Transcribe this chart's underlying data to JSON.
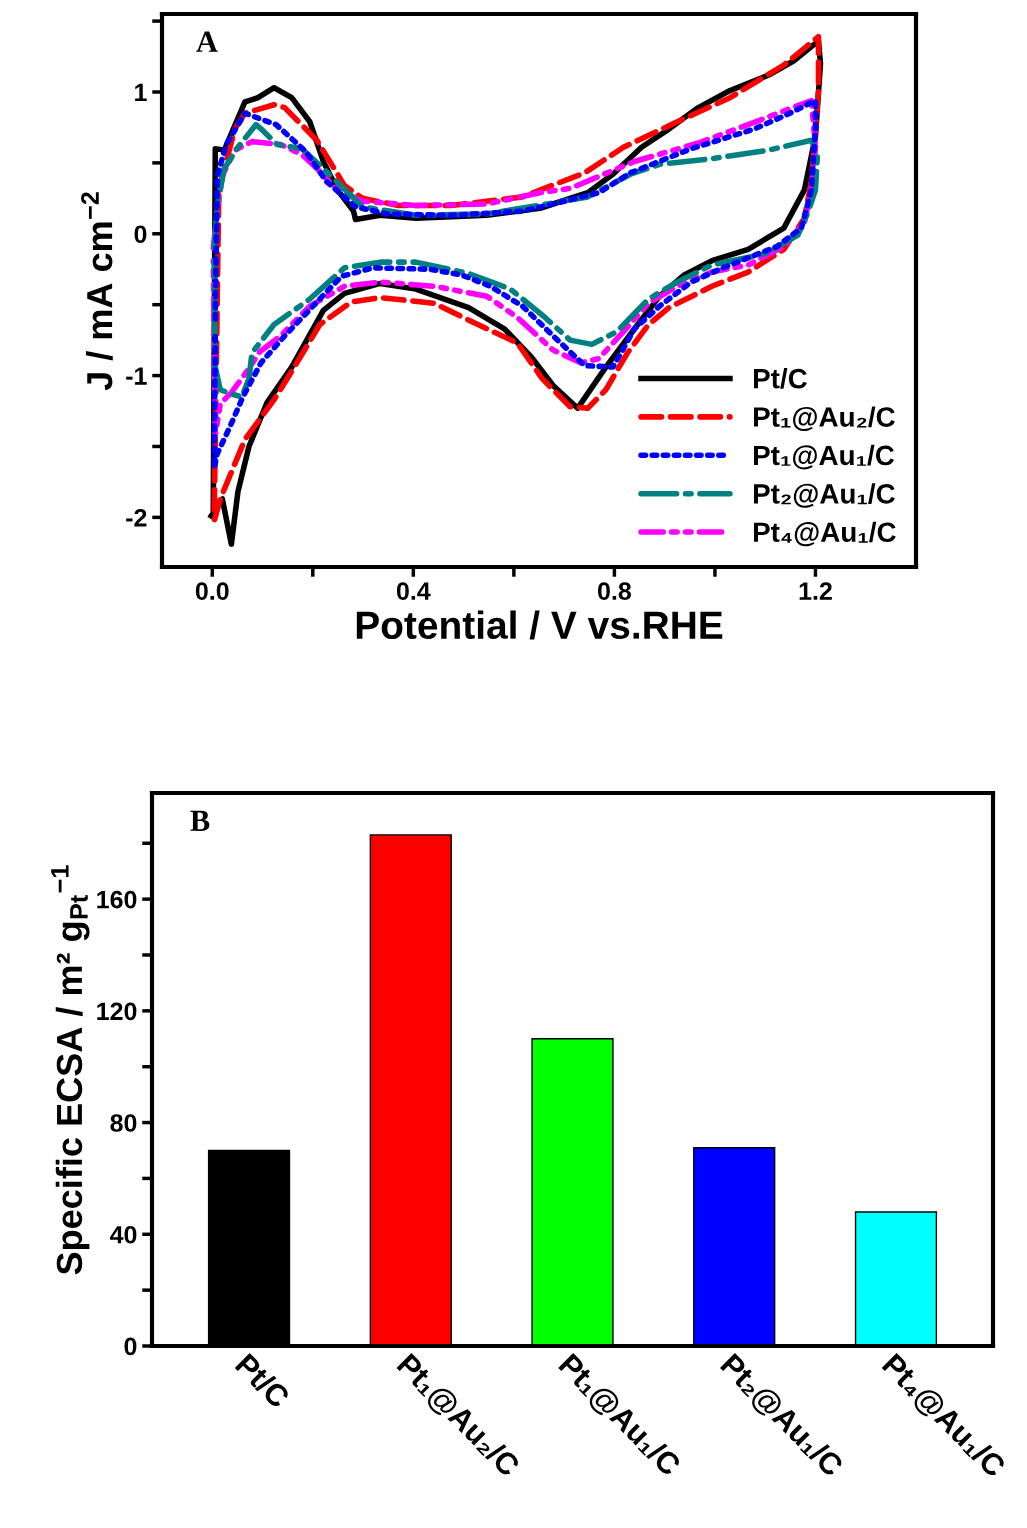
{
  "chart_data": [
    {
      "type": "line",
      "xlabel": "Potential / V vs.RHE",
      "ylabel": "J / mA cm$^{−2}$",
      "annotations": [
        "A"
      ],
      "xlim": [
        -0.1,
        1.4
      ],
      "ylim": [
        -2.35,
        1.55
      ],
      "xticks": [
        {
          "value": 0,
          "label": "0.0"
        },
        {
          "value": 0.2,
          "label": null
        },
        0.4,
        {
          "value": 0.6,
          "label": null
        },
        0.8,
        {
          "value": 1.0,
          "label": null
        },
        1.2
      ],
      "yticks": [
        -2,
        {
          "value": -1.5,
          "label": null
        },
        -1,
        {
          "value": -0.5,
          "label": null
        },
        0,
        {
          "value": 0.5,
          "label": null
        },
        1,
        {
          "value": 1.5,
          "label": null
        }
      ],
      "legend": "bottom right",
      "grid": false,
      "series": [
        {
          "name": "Pt/C",
          "color": "#000000",
          "line_style": "solid",
          "x": [
            0.002,
            0.006,
            0.024,
            0.065,
            0.091,
            0.123,
            0.158,
            0.194,
            0.221,
            0.249,
            0.281,
            0.285,
            0.334,
            0.405,
            0.546,
            0.652,
            0.678,
            0.747,
            0.797,
            0.854,
            0.909,
            0.967,
            1.03,
            1.107,
            1.157,
            1.206,
            1.21,
            1.2,
            1.178,
            1.137,
            1.066,
            0.994,
            0.939,
            0.89,
            0.84,
            0.783,
            0.727,
            0.678,
            0.635,
            0.581,
            0.51,
            0.405,
            0.334,
            0.263,
            0.221,
            0.158,
            0.109,
            0.073,
            0.051,
            0.038,
            0.02,
            -0.002
          ],
          "values": [
            -1.95,
            0.6,
            0.59,
            0.93,
            0.96,
            1.03,
            0.96,
            0.79,
            0.51,
            0.31,
            0.16,
            0.1,
            0.13,
            0.11,
            0.13,
            0.18,
            0.21,
            0.29,
            0.42,
            0.61,
            0.74,
            0.89,
            1.01,
            1.12,
            1.22,
            1.36,
            1.2,
            0.69,
            0.31,
            0.04,
            -0.11,
            -0.19,
            -0.29,
            -0.44,
            -0.67,
            -0.94,
            -1.23,
            -1.07,
            -0.87,
            -0.67,
            -0.52,
            -0.39,
            -0.35,
            -0.42,
            -0.54,
            -0.94,
            -1.19,
            -1.5,
            -1.82,
            -2.19,
            -1.87,
            -1.99
          ]
        },
        {
          "name": "Pt₁@Au₂/C",
          "color": "#ff0000",
          "line_style": "dashed",
          "x": [
            0.004,
            0.013,
            0.045,
            0.065,
            0.123,
            0.144,
            0.208,
            0.263,
            0.299,
            0.37,
            0.475,
            0.617,
            0.741,
            0.818,
            0.925,
            1.03,
            1.137,
            1.206,
            1.206,
            1.192,
            1.178,
            1.137,
            1.066,
            0.994,
            0.909,
            0.868,
            0.826,
            0.783,
            0.747,
            0.712,
            0.656,
            0.607,
            0.546,
            0.441,
            0.334,
            0.277,
            0.214,
            0.158,
            0.123,
            0.065,
            0.03,
            0.016,
            0.002
          ],
          "values": [
            -1.95,
            0.31,
            0.74,
            0.85,
            0.91,
            0.89,
            0.66,
            0.34,
            0.25,
            0.2,
            0.2,
            0.26,
            0.43,
            0.61,
            0.79,
            0.96,
            1.19,
            1.39,
            1.01,
            0.37,
            0.11,
            -0.11,
            -0.27,
            -0.37,
            -0.52,
            -0.64,
            -0.84,
            -1.1,
            -1.23,
            -1.22,
            -1.02,
            -0.77,
            -0.67,
            -0.49,
            -0.45,
            -0.48,
            -0.64,
            -0.97,
            -1.17,
            -1.45,
            -1.75,
            -1.87,
            -2.05
          ]
        },
        {
          "name": "Pt₁@Au₁/C",
          "color": "#0000ff",
          "line_style": "dotted",
          "x": [
            0.006,
            0.01,
            0.028,
            0.065,
            0.127,
            0.186,
            0.227,
            0.285,
            0.348,
            0.475,
            0.617,
            0.678,
            0.769,
            0.832,
            0.953,
            1.079,
            1.143,
            1.2,
            1.2,
            1.192,
            1.172,
            1.123,
            1.016,
            0.953,
            0.89,
            0.84,
            0.797,
            0.741,
            0.678,
            0.617,
            0.553,
            0.496,
            0.433,
            0.32,
            0.257,
            0.144,
            0.097,
            0.061,
            0.034,
            0.01,
            0.004,
            0.006
          ],
          "values": [
            -0.6,
            0.41,
            0.63,
            0.85,
            0.77,
            0.58,
            0.37,
            0.19,
            0.14,
            0.13,
            0.16,
            0.21,
            0.29,
            0.43,
            0.6,
            0.74,
            0.84,
            0.94,
            0.74,
            0.31,
            0.04,
            -0.09,
            -0.24,
            -0.34,
            -0.51,
            -0.67,
            -0.94,
            -0.93,
            -0.72,
            -0.51,
            -0.37,
            -0.29,
            -0.25,
            -0.24,
            -0.3,
            -0.72,
            -0.91,
            -1.15,
            -1.37,
            -1.55,
            -1.65,
            -0.69
          ]
        },
        {
          "name": "Pt₂@Au₁/C",
          "color": "#008080",
          "line_style": "dashdot",
          "x": [
            0.004,
            0.01,
            0.024,
            0.051,
            0.087,
            0.097,
            0.129,
            0.178,
            0.227,
            0.299,
            0.405,
            0.546,
            0.666,
            0.747,
            0.832,
            0.89,
            0.994,
            1.107,
            1.192,
            1.204,
            1.2,
            1.186,
            1.165,
            1.101,
            0.994,
            0.925,
            0.868,
            0.805,
            0.755,
            0.712,
            0.662,
            0.593,
            0.51,
            0.405,
            0.334,
            0.263,
            0.194,
            0.123,
            0.079,
            0.073,
            0.059,
            0.038,
            0.016,
            0.006,
            0.004
          ],
          "values": [
            -0.1,
            0.21,
            0.46,
            0.61,
            0.77,
            0.74,
            0.63,
            0.6,
            0.44,
            0.19,
            0.13,
            0.14,
            0.21,
            0.26,
            0.42,
            0.49,
            0.53,
            0.59,
            0.66,
            0.56,
            0.31,
            0.16,
            -0.01,
            -0.14,
            -0.22,
            -0.34,
            -0.46,
            -0.69,
            -0.78,
            -0.75,
            -0.59,
            -0.39,
            -0.28,
            -0.2,
            -0.2,
            -0.24,
            -0.46,
            -0.64,
            -0.84,
            -1.02,
            -1.15,
            -1.13,
            -1.1,
            -0.94,
            -0.19
          ]
        },
        {
          "name": "Pt₄@Au₁/C",
          "color": "#ff00ff",
          "line_style": "dashdotdot",
          "x": [
            0.002,
            0.01,
            0.02,
            0.045,
            0.079,
            0.136,
            0.178,
            0.208,
            0.249,
            0.299,
            0.405,
            0.546,
            0.652,
            0.712,
            0.84,
            0.967,
            1.066,
            1.192,
            1.2,
            1.192,
            1.178,
            1.137,
            1.066,
            0.994,
            0.925,
            0.868,
            0.818,
            0.769,
            0.733,
            0.678,
            0.607,
            0.546,
            0.441,
            0.334,
            0.263,
            0.194,
            0.136,
            0.095,
            0.065,
            0.038,
            0.016,
            0.006,
            0.002
          ],
          "values": [
            -0.1,
            0.16,
            0.41,
            0.59,
            0.65,
            0.63,
            0.56,
            0.46,
            0.31,
            0.23,
            0.2,
            0.21,
            0.29,
            0.32,
            0.51,
            0.64,
            0.77,
            0.94,
            0.61,
            0.31,
            0.08,
            -0.09,
            -0.22,
            -0.27,
            -0.37,
            -0.49,
            -0.69,
            -0.88,
            -0.91,
            -0.82,
            -0.59,
            -0.44,
            -0.37,
            -0.34,
            -0.37,
            -0.51,
            -0.72,
            -0.83,
            -0.99,
            -1.12,
            -1.2,
            -1.42,
            -0.19
          ]
        }
      ]
    },
    {
      "type": "bar",
      "ylabel": "Specific ECSA / m² g$_{Pt}$$^{−1}$",
      "annotations": [
        "B"
      ],
      "categories": [
        "Pt/C",
        "Pt₁@Au₂/C",
        "Pt₁@Au₁/C",
        "Pt₂@Au₁/C",
        "Pt₄@Au₁/C"
      ],
      "values": [
        70,
        183,
        110,
        71,
        48
      ],
      "colors": [
        "#000000",
        "#ff0000",
        "#00ff00",
        "#0000ff",
        "#00ffff"
      ],
      "ylim": [
        0,
        198
      ],
      "yticks": [
        0,
        {
          "value": 20,
          "label": null
        },
        40,
        {
          "value": 60,
          "label": null
        },
        80,
        {
          "value": 100,
          "label": null
        },
        120,
        {
          "value": 140,
          "label": null
        },
        160,
        {
          "value": 180,
          "label": null
        }
      ],
      "grid": false
    }
  ]
}
